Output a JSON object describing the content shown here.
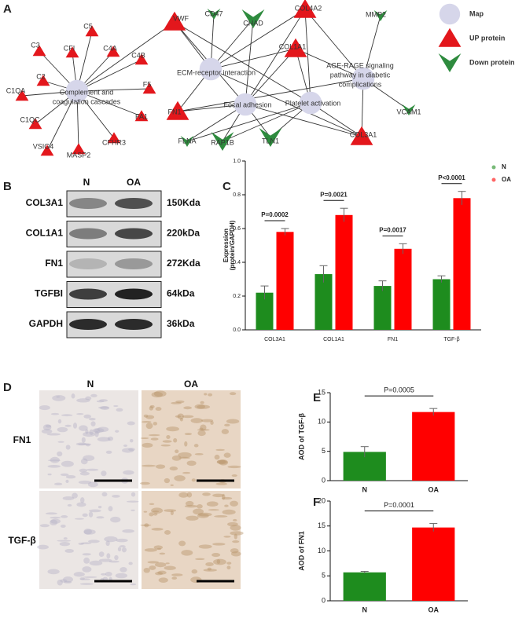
{
  "panels": [
    "A",
    "B",
    "C",
    "D",
    "E",
    "F"
  ],
  "network": {
    "nodes": [
      {
        "label": [
          "Complement and",
          "coagulation cascades"
        ],
        "kind": "map"
      },
      {
        "label": "ECM-receptor interaction",
        "kind": "map"
      },
      {
        "label": "Focal adhesion",
        "kind": "map"
      },
      {
        "label": "Platelet activation",
        "kind": "map"
      },
      {
        "label": [
          "AGE-RAGE signaling",
          "pathway in diabetic",
          "complications"
        ],
        "kind": "map"
      },
      {
        "label": "C5",
        "kind": "up"
      },
      {
        "label": "C3",
        "kind": "up"
      },
      {
        "label": "CFI",
        "kind": "up"
      },
      {
        "label": "C4A",
        "kind": "up"
      },
      {
        "label": "C4B",
        "kind": "up"
      },
      {
        "label": "C2",
        "kind": "up"
      },
      {
        "label": "C1QA",
        "kind": "up"
      },
      {
        "label": "C1QC",
        "kind": "up"
      },
      {
        "label": "VSIG4",
        "kind": "up"
      },
      {
        "label": "MASP2",
        "kind": "up"
      },
      {
        "label": "CFHR3",
        "kind": "up"
      },
      {
        "label": "FA1",
        "kind": "up"
      },
      {
        "label": "F5",
        "kind": "up"
      },
      {
        "label": "VWF",
        "kind": "up"
      },
      {
        "label": "COL4A2",
        "kind": "up"
      },
      {
        "label": "COL1A1",
        "kind": "up"
      },
      {
        "label": "FN1",
        "kind": "up"
      },
      {
        "label": "COL3A1",
        "kind": "up"
      },
      {
        "label": "CD47",
        "kind": "down"
      },
      {
        "label": "CHAD",
        "kind": "down"
      },
      {
        "label": "MMP2",
        "kind": "down"
      },
      {
        "label": "FLNA",
        "kind": "down"
      },
      {
        "label": "RAP1B",
        "kind": "down"
      },
      {
        "label": "TLN1",
        "kind": "down"
      },
      {
        "label": "VCAM1",
        "kind": "down"
      }
    ],
    "legend": [
      {
        "label": "Map",
        "kind": "map"
      },
      {
        "label": "UP protein",
        "kind": "up"
      },
      {
        "label": "Down protein",
        "kind": "down"
      }
    ]
  },
  "blot": {
    "columns": [
      "N",
      "OA"
    ],
    "rows": [
      {
        "protein": "COL3A1",
        "size": "150Kda"
      },
      {
        "protein": "COL1A1",
        "size": "220kDa"
      },
      {
        "protein": "FN1",
        "size": "272Kda"
      },
      {
        "protein": "TGFBI",
        "size": "64kDa"
      },
      {
        "protein": "GAPDH",
        "size": "36kDa"
      }
    ]
  },
  "histology": {
    "columns": [
      "N",
      "OA"
    ],
    "rows": [
      "FN1",
      "TGF-β"
    ]
  },
  "chart_data": [
    {
      "type": "bar",
      "ylabel": [
        "Expression",
        "(protein/GAPDH)"
      ],
      "categories": [
        "COL3A1",
        "COL1A1",
        "FN1",
        "TGF-β"
      ],
      "series": [
        {
          "name": "N",
          "color": "#1e8c1e",
          "values": [
            0.22,
            0.33,
            0.26,
            0.3
          ],
          "errors": [
            0.04,
            0.05,
            0.03,
            0.02
          ]
        },
        {
          "name": "OA",
          "color": "#ff0000",
          "values": [
            0.58,
            0.68,
            0.48,
            0.78
          ],
          "errors": [
            0.02,
            0.04,
            0.03,
            0.04
          ]
        }
      ],
      "annotations": [
        "P=0.0002",
        "P=0.0021",
        "P=0.0017",
        "P<0.0001"
      ],
      "ylim": [
        0,
        1
      ],
      "yticks": [
        {
          "value": 0,
          "label": "0.0"
        },
        0.2,
        0.4,
        0.6,
        0.8,
        {
          "value": 1,
          "label": "1.0"
        }
      ],
      "legend": "top-right"
    },
    {
      "type": "bar",
      "ylabel": "AOD of TGF-β",
      "categories": [
        "N",
        "OA"
      ],
      "values": [
        4.9,
        11.7
      ],
      "errors": [
        0.9,
        0.6
      ],
      "colors": [
        "#1e8c1e",
        "#ff0000"
      ],
      "annotations": [
        "P=0.0005"
      ],
      "ylim": [
        0,
        15
      ],
      "yticks": [
        0,
        5,
        10,
        15
      ]
    },
    {
      "type": "bar",
      "ylabel": "AOD of FN1",
      "categories": [
        "N",
        "OA"
      ],
      "values": [
        5.7,
        14.7
      ],
      "errors": [
        0.2,
        0.8
      ],
      "colors": [
        "#1e8c1e",
        "#ff0000"
      ],
      "annotations": [
        "P=0.0001"
      ],
      "ylim": [
        0,
        20
      ],
      "yticks": [
        0,
        5,
        10,
        15,
        20
      ]
    }
  ]
}
